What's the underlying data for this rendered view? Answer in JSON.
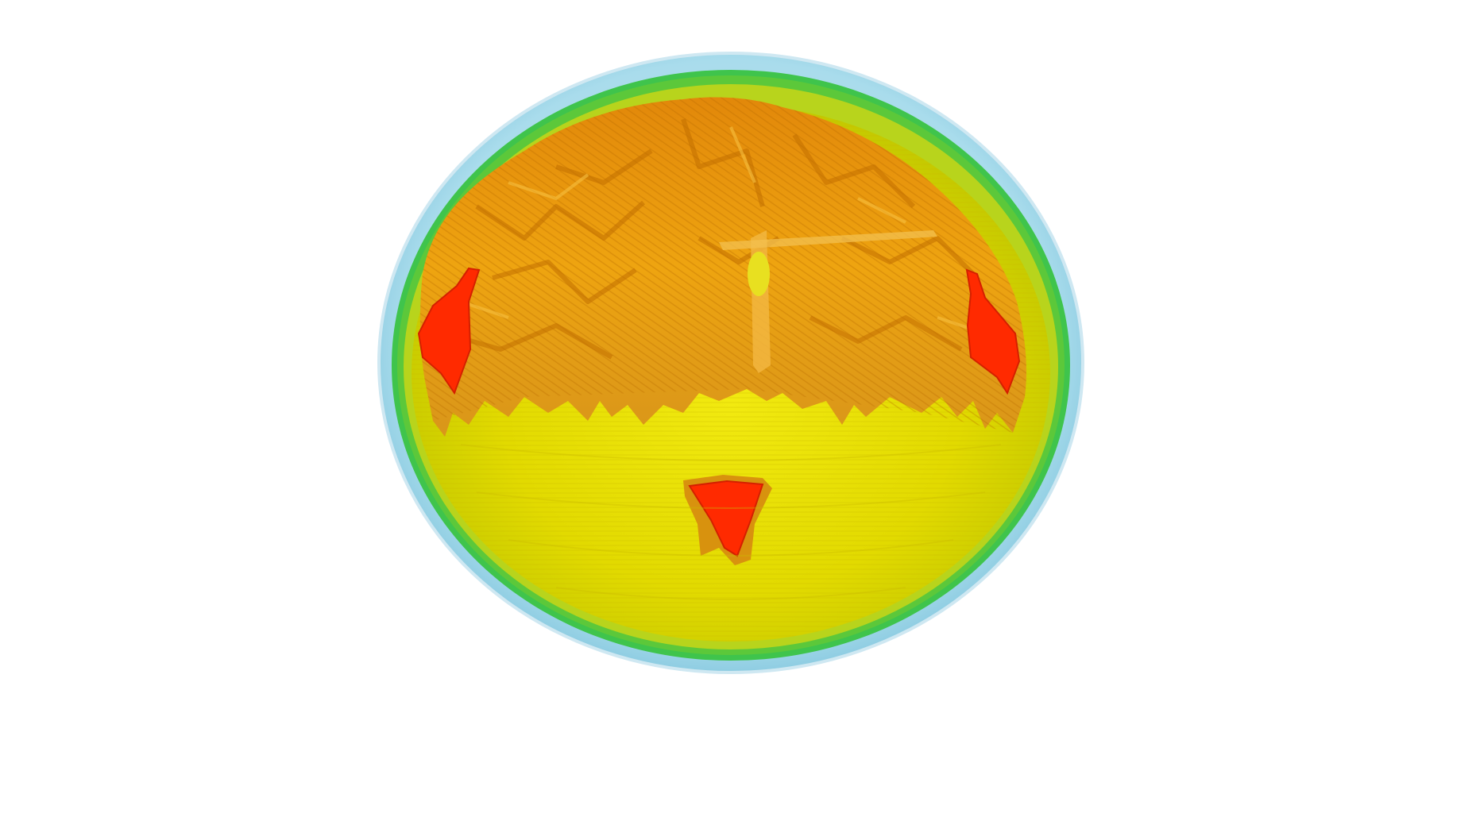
{
  "scene": {
    "background_color": "#ffffff",
    "layers": [
      {
        "name": "outer-skin-layer",
        "color": "#9fd6ea"
      },
      {
        "name": "skull-layer",
        "color": "#3ec64a"
      },
      {
        "name": "csf-layer",
        "color": "#c8d820"
      },
      {
        "name": "brain-volume-layer",
        "color": "#e6e000"
      },
      {
        "name": "cortex-surface",
        "color": "#f0a000"
      },
      {
        "name": "highlighted-region",
        "color": "#ff2a00"
      }
    ]
  }
}
